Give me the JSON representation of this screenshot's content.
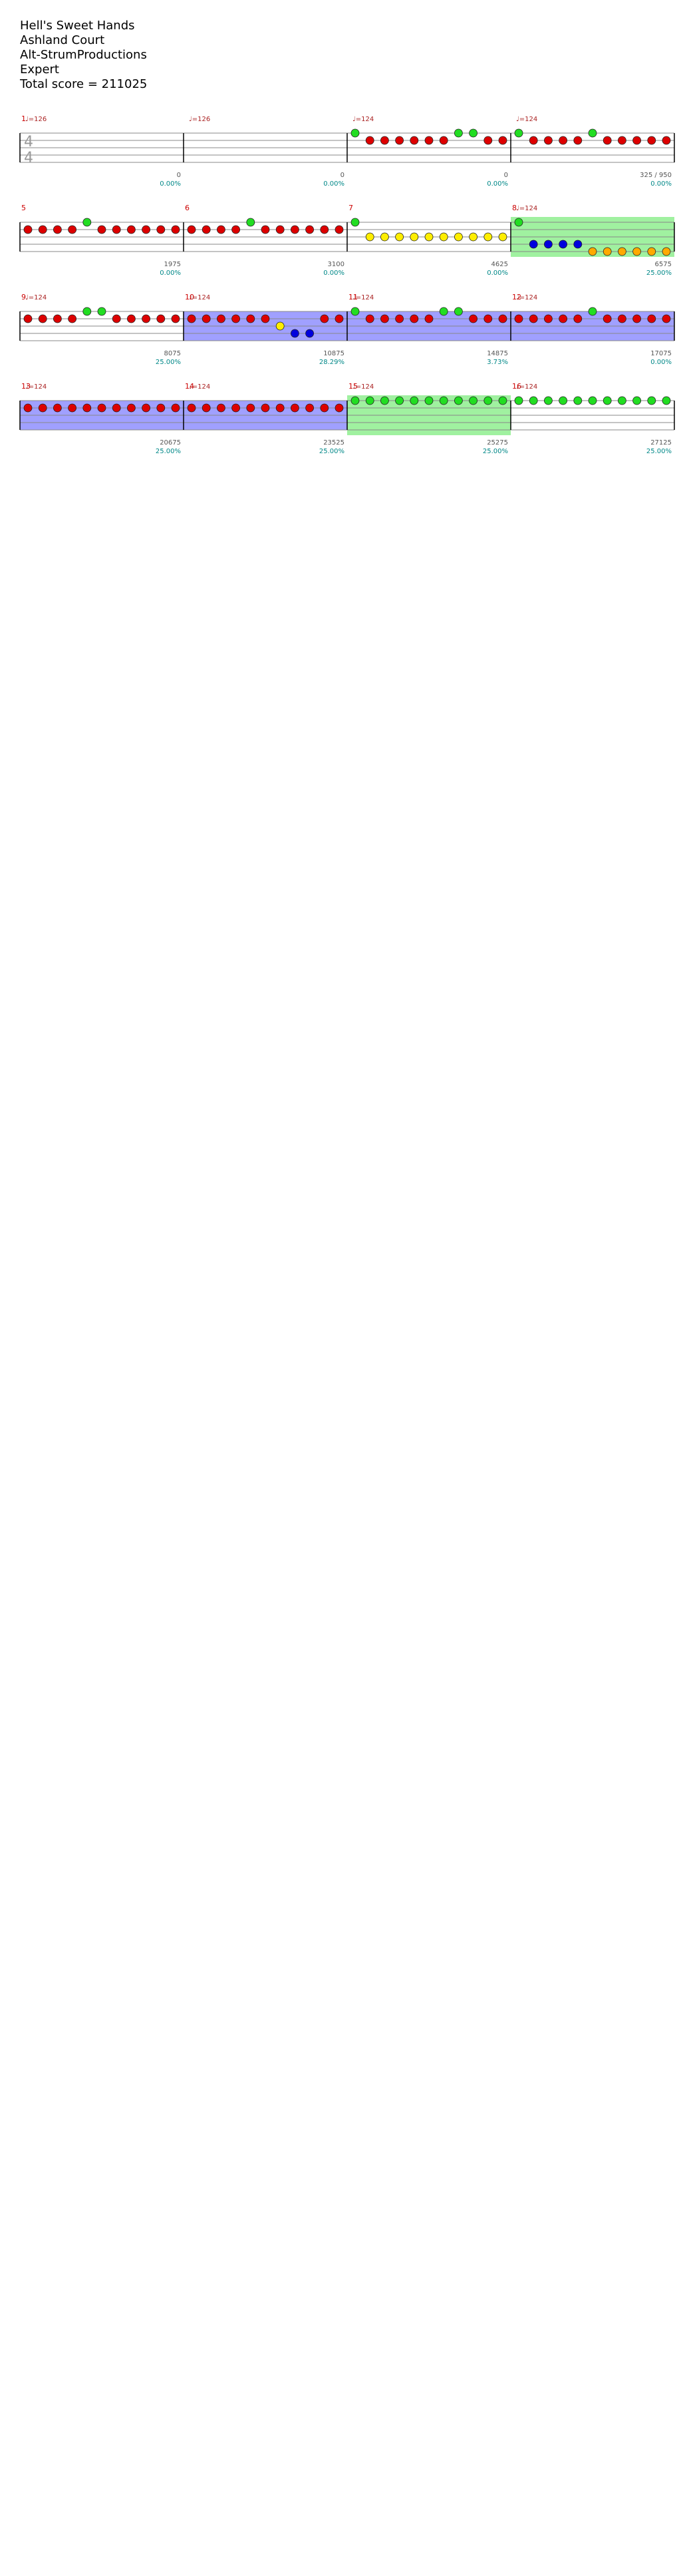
{
  "song": {
    "title": "Hell's Sweet Hands",
    "artist": "Ashland Court",
    "charter": "Alt-StrumProductions",
    "difficulty": "Expert",
    "total_score_label": "Total score = 211025"
  },
  "colors": {
    "green": "#22dd22",
    "red": "#dd0000",
    "yellow": "#ffee00",
    "blue": "#0000dd",
    "orange": "#ffaa00",
    "sp_phrase": "#88ee88",
    "activation": "#8888ff",
    "staff_line": "#888888",
    "score_text": "#555555",
    "percent_text": "#008888",
    "measure_number": "#cc0000",
    "bpm_text": "#aa2222"
  },
  "chart_data": {
    "type": "table",
    "measures": [
      {
        "n": "1",
        "bpm": "♩=126",
        "ts": "4/4",
        "score": "0",
        "pct": "0.00%",
        "notes": []
      },
      {
        "n": "",
        "bpm": "♩=126",
        "score": "0",
        "pct": "0.00%",
        "notes": []
      },
      {
        "n": "",
        "bpm": "♩=124",
        "score": "0",
        "pct": "0.00%",
        "notes": [
          "g",
          "r",
          "r",
          "r",
          "r",
          "r",
          "r",
          "g",
          "g",
          "r",
          "r"
        ]
      },
      {
        "n": "",
        "bpm": "♩=124",
        "score": "325 / 950",
        "pct": "0.00%",
        "notes": [
          "g",
          "r",
          "r",
          "r",
          "r",
          "g",
          "r",
          "r",
          "r",
          "r",
          "r"
        ]
      },
      {
        "n": "5",
        "score": "1975",
        "pct": "0.00%",
        "notes": [
          "r",
          "r",
          "r",
          "r",
          "g",
          "r",
          "r",
          "r",
          "r",
          "r",
          "r"
        ]
      },
      {
        "n": "6",
        "score": "3100",
        "pct": "0.00%",
        "notes": [
          "r",
          "r",
          "r",
          "r",
          "g",
          "r",
          "r",
          "r",
          "r",
          "r",
          "r"
        ]
      },
      {
        "n": "7",
        "score": "4625",
        "pct": "0.00%",
        "notes": [
          "g",
          "y",
          "y",
          "y",
          "y",
          "y",
          "y",
          "y",
          "y",
          "y",
          "y"
        ]
      },
      {
        "n": "8",
        "bpm": "♩=124",
        "score": "6575",
        "pct": "25.00%",
        "sp": true,
        "notes": [
          "g",
          "b",
          "b",
          "b",
          "b",
          "o",
          "o",
          "o",
          "o",
          "o",
          "o"
        ]
      },
      {
        "n": "9",
        "bpm": "♩=124",
        "score": "8075",
        "pct": "25.00%",
        "notes": [
          "r",
          "r",
          "r",
          "r",
          "g",
          "g",
          "r",
          "r",
          "r",
          "r",
          "r"
        ]
      },
      {
        "n": "10",
        "bpm": "♩=124",
        "score": "10875",
        "pct": "28.29%",
        "act": true,
        "notes": [
          "r",
          "r",
          "r",
          "r",
          "r",
          "r",
          "y",
          "b",
          "b",
          "r",
          "r"
        ]
      },
      {
        "n": "11",
        "bpm": "♩=124",
        "score": "14875",
        "pct": "3.73%",
        "act": true,
        "notes": [
          "g",
          "r",
          "r",
          "r",
          "r",
          "r",
          "g",
          "g",
          "r",
          "r",
          "r"
        ]
      },
      {
        "n": "12",
        "bpm": "♩=124",
        "score": "17075",
        "pct": "0.00%",
        "act": true,
        "notes": [
          "r",
          "r",
          "r",
          "r",
          "r",
          "g",
          "r",
          "r",
          "r",
          "r",
          "r"
        ]
      },
      {
        "n": "13",
        "bpm": "♩=124",
        "score": "20675",
        "pct": "25.00%",
        "act": true,
        "notes": [
          "r",
          "r",
          "r",
          "r",
          "r",
          "r",
          "r",
          "r",
          "r",
          "r",
          "r"
        ]
      },
      {
        "n": "14",
        "bpm": "♩=124",
        "score": "23525",
        "pct": "25.00%",
        "act": true,
        "notes": [
          "r",
          "r",
          "r",
          "r",
          "r",
          "r",
          "r",
          "r",
          "r",
          "r",
          "r"
        ]
      },
      {
        "n": "15",
        "bpm": "♩=124",
        "score": "25275",
        "pct": "25.00%",
        "sp": true,
        "notes": [
          "g",
          "g",
          "g",
          "g",
          "g",
          "g",
          "g",
          "g",
          "g",
          "g",
          "g"
        ]
      },
      {
        "n": "16",
        "bpm": "♩=124",
        "score": "27125",
        "pct": "25.00%",
        "notes": [
          "g",
          "g",
          "g",
          "g",
          "g",
          "g",
          "g",
          "g",
          "g",
          "g",
          "g"
        ]
      }
    ]
  }
}
